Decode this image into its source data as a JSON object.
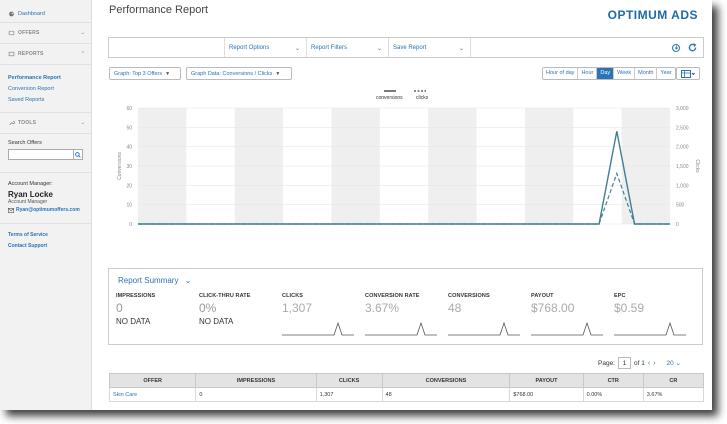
{
  "sidebar": {
    "dashboard": "Dashboard",
    "offers": "OFFERS",
    "reports": "REPORTS",
    "report_links": [
      "Performance Report",
      "Conversion Report",
      "Saved Reports"
    ],
    "tools": "TOOLS",
    "search_label": "Search Offers",
    "search_placeholder": "",
    "account_manager_label": "Account Manager:",
    "account_manager_name": "Ryan Locke",
    "account_manager_role": "Account Manager",
    "account_manager_email": "Ryan@optimumoffers.com",
    "footer_links": [
      "Terms of Service",
      "Contact Support"
    ]
  },
  "header": {
    "title": "Performance Report",
    "brand": "OPTIMUM ADS"
  },
  "toolbar": {
    "items": [
      "Report Options",
      "Report Filters",
      "Save Report"
    ]
  },
  "controls": {
    "graph_type": "Graph: Top 3 Offers",
    "graph_data": "Graph Data: Conversions / Clicks",
    "time_buttons": [
      "Hour of day",
      "Hour",
      "Day",
      "Week",
      "Month",
      "Year"
    ],
    "active_time": "Day"
  },
  "colors": {
    "accent": "#2a73b5",
    "line": "#3f7f94"
  },
  "chart_data": {
    "type": "line",
    "legend": [
      "conversions",
      "clicks"
    ],
    "ylabel": "Conversions",
    "y2label": "Clicks",
    "ylim": [
      0,
      60
    ],
    "y2lim": [
      0,
      3000
    ],
    "yticks": [
      "60",
      "50",
      "40",
      "30",
      "20",
      "10",
      "0"
    ],
    "y2ticks": [
      "3,000",
      "2,500",
      "2,000",
      "1,500",
      "1,000",
      "500",
      "0"
    ],
    "x": [
      0,
      1,
      2,
      3,
      4,
      5,
      6,
      7,
      8,
      9,
      10,
      11,
      12,
      13,
      14,
      15,
      16,
      17,
      18,
      19,
      20,
      21,
      22,
      23,
      24,
      25,
      26,
      27,
      28,
      29,
      30
    ],
    "series": [
      {
        "name": "conversions",
        "values": [
          0,
          0,
          0,
          0,
          0,
          0,
          0,
          0,
          0,
          0,
          0,
          0,
          0,
          0,
          0,
          0,
          0,
          0,
          0,
          0,
          0,
          0,
          0,
          0,
          0,
          0,
          0,
          48,
          0,
          0,
          0
        ]
      },
      {
        "name": "clicks",
        "values": [
          0,
          0,
          0,
          0,
          0,
          0,
          0,
          0,
          0,
          0,
          0,
          0,
          0,
          0,
          0,
          0,
          0,
          0,
          0,
          0,
          0,
          0,
          0,
          0,
          0,
          0,
          0,
          1307,
          0,
          0,
          0
        ]
      }
    ]
  },
  "summary": {
    "title": "Report Summary",
    "metrics": [
      {
        "label": "IMPRESSIONS",
        "value": "0",
        "note": "NO DATA"
      },
      {
        "label": "CLICK-THRU RATE",
        "value": "0%",
        "note": "NO DATA"
      },
      {
        "label": "CLICKS",
        "value": "1,307",
        "note": ""
      },
      {
        "label": "CONVERSION RATE",
        "value": "3.67%",
        "note": ""
      },
      {
        "label": "CONVERSIONS",
        "value": "48",
        "note": ""
      },
      {
        "label": "PAYOUT",
        "value": "$768.00",
        "note": ""
      },
      {
        "label": "EPC",
        "value": "$0.59",
        "note": ""
      }
    ]
  },
  "pager": {
    "label": "Page:",
    "current": "1",
    "of": "of 1",
    "page_size": "20"
  },
  "table": {
    "columns": [
      "OFFER",
      "IMPRESSIONS",
      "CLICKS",
      "CONVERSIONS",
      "PAYOUT",
      "CTR",
      "CR"
    ],
    "rows": [
      [
        "Skin Care",
        "0",
        "1,307",
        "48",
        "$768.00",
        "0.00%",
        "3.67%"
      ]
    ]
  }
}
